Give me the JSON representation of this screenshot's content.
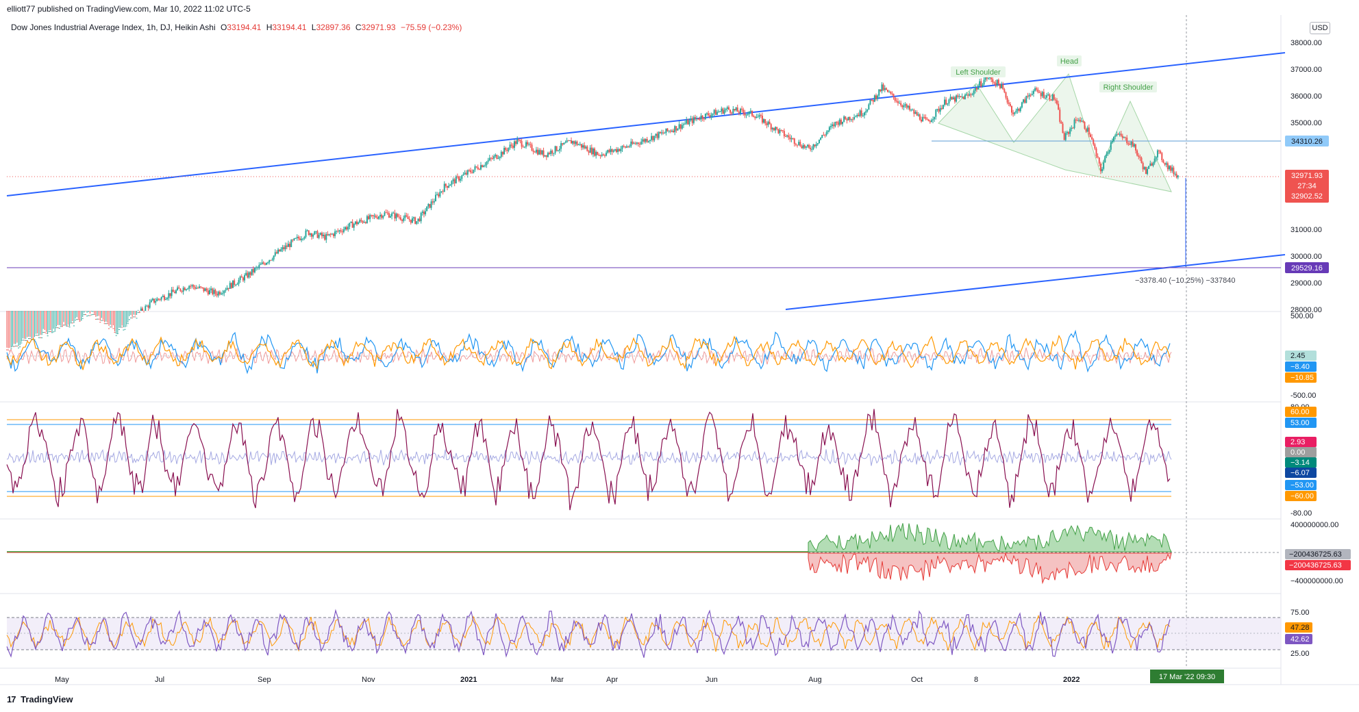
{
  "header": {
    "published": "elliott77 published on TradingView.com, Mar 10, 2022 11:02 UTC-5",
    "symbol": "Dow Jones Industrial Average Index, 1h, DJ, Heikin Ashi",
    "open_label": "O",
    "open": "33194.41",
    "high_label": "H",
    "high": "33194.41",
    "low_label": "L",
    "low": "32897.36",
    "close_label": "C",
    "close": "32971.93",
    "change": "−75.59 (−0.23%)",
    "currency": "USD"
  },
  "footer": {
    "logo": "17",
    "brand": "TradingView"
  },
  "colors": {
    "up": "#26a69a",
    "down": "#ef5350",
    "trendline": "#2962ff",
    "neckline": "#5b9bd5",
    "support": "#673ab7",
    "pattern_fill": "#c8e6c9"
  },
  "chart_data": [
    {
      "type": "candlestick",
      "name": "price",
      "x_ticks": [
        "May",
        "Jul",
        "Sep",
        "Nov",
        "2021",
        "Mar",
        "Apr",
        "Jun",
        "Aug",
        "Oct",
        "8",
        "2022"
      ],
      "y_ticks": [
        "38000.00",
        "37000.00",
        "36000.00",
        "35000.00",
        "31000.00",
        "30000.00",
        "29000.00",
        "28000.00"
      ],
      "ylim": [
        28000,
        38000
      ],
      "path_points": [
        [
          0,
          26500
        ],
        [
          60,
          27300
        ],
        [
          90,
          27800
        ],
        [
          120,
          27100
        ],
        [
          160,
          28300
        ],
        [
          200,
          28900
        ],
        [
          230,
          28600
        ],
        [
          265,
          29300
        ],
        [
          300,
          30200
        ],
        [
          330,
          30900
        ],
        [
          350,
          30700
        ],
        [
          380,
          31200
        ],
        [
          415,
          31600
        ],
        [
          450,
          31300
        ],
        [
          480,
          32600
        ],
        [
          510,
          33200
        ],
        [
          540,
          33800
        ],
        [
          560,
          34300
        ],
        [
          590,
          33800
        ],
        [
          620,
          34300
        ],
        [
          650,
          33800
        ],
        [
          680,
          34100
        ],
        [
          720,
          34600
        ],
        [
          760,
          35200
        ],
        [
          790,
          35500
        ],
        [
          820,
          35300
        ],
        [
          850,
          34600
        ],
        [
          880,
          34000
        ],
        [
          910,
          35000
        ],
        [
          940,
          35400
        ],
        [
          960,
          36300
        ],
        [
          985,
          35600
        ],
        [
          1010,
          35000
        ],
        [
          1030,
          35800
        ],
        [
          1055,
          36000
        ],
        [
          1075,
          36700
        ],
        [
          1090,
          36400
        ],
        [
          1105,
          35300
        ],
        [
          1125,
          36200
        ],
        [
          1150,
          35900
        ],
        [
          1160,
          34400
        ],
        [
          1175,
          35200
        ],
        [
          1188,
          34600
        ],
        [
          1200,
          33200
        ],
        [
          1215,
          34600
        ],
        [
          1235,
          34200
        ],
        [
          1250,
          33100
        ],
        [
          1262,
          33900
        ],
        [
          1275,
          33300
        ],
        [
          1285,
          33000
        ]
      ],
      "annotations": [
        "Left Shoulder",
        "Head",
        "Right Shoulder"
      ],
      "measure_label": "−3378.40 (−10.25%) −337840",
      "price_labels": {
        "neckline": "34310.26",
        "last": "32971.93",
        "countdown": "27:34",
        "prev": "32902.52",
        "support": "29529.16"
      },
      "time_label": "17 Mar '22  09:30"
    },
    {
      "type": "line",
      "name": "oscillator",
      "y_ticks": [
        "500.00",
        "-500.00"
      ],
      "labels": [
        "2.45",
        "−8.40",
        "−10.85"
      ]
    },
    {
      "type": "line",
      "name": "band oscillator",
      "y_ticks": [
        "80.00",
        "-80.00"
      ],
      "labels": [
        "60.00",
        "53.00",
        "2.93",
        "0.00",
        "−3.14",
        "−6.07",
        "−53.00",
        "−60.00"
      ]
    },
    {
      "type": "area",
      "name": "volume flow",
      "y_ticks": [
        "400000000.00",
        "−400000000.00"
      ],
      "labels": [
        "−200436725.63",
        "−200436725.63"
      ]
    },
    {
      "type": "line",
      "name": "rsi",
      "y_ticks": [
        "75.00",
        "25.00"
      ],
      "labels": [
        "47.28",
        "42.62"
      ]
    }
  ]
}
